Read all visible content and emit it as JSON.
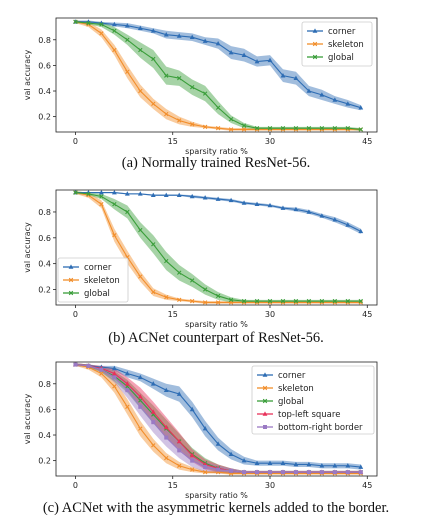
{
  "colors": {
    "corner": "#2e6db4",
    "skeleton": "#f28e2b",
    "global": "#3a9e3a",
    "top-left square": "#e8325a",
    "bottom-right border": "#9a7ac4"
  },
  "chart_data": [
    {
      "type": "line",
      "caption": "(a) Normally trained ResNet-56.",
      "xlabel": "sparsity ratio %",
      "ylabel": "val accuracy",
      "xlim": [
        -3,
        46.5
      ],
      "ylim": [
        0.08,
        0.97
      ],
      "xticks": [
        0,
        15,
        30,
        45
      ],
      "yticks": [
        0.2,
        0.4,
        0.6,
        0.8
      ],
      "legend_position": "top-right",
      "series": [
        {
          "name": "corner",
          "marker": "triangle",
          "x": [
            0,
            2,
            4,
            6,
            8,
            10,
            12,
            14,
            16,
            18,
            20,
            22,
            24,
            26,
            28,
            30,
            32,
            34,
            36,
            38,
            40,
            42,
            44
          ],
          "y": [
            0.94,
            0.94,
            0.93,
            0.92,
            0.91,
            0.89,
            0.87,
            0.84,
            0.83,
            0.82,
            0.79,
            0.77,
            0.7,
            0.68,
            0.63,
            0.64,
            0.52,
            0.5,
            0.4,
            0.37,
            0.33,
            0.3,
            0.27
          ],
          "band": [
            0.01,
            0.01,
            0.01,
            0.015,
            0.02,
            0.02,
            0.02,
            0.03,
            0.03,
            0.03,
            0.03,
            0.04,
            0.05,
            0.05,
            0.04,
            0.04,
            0.05,
            0.05,
            0.04,
            0.04,
            0.03,
            0.03,
            0.02
          ]
        },
        {
          "name": "skeleton",
          "marker": "x",
          "x": [
            0,
            2,
            4,
            6,
            8,
            10,
            12,
            14,
            16,
            18,
            20,
            22,
            24,
            26,
            28,
            30,
            32,
            34,
            36,
            38,
            40,
            42,
            44
          ],
          "y": [
            0.94,
            0.92,
            0.85,
            0.72,
            0.55,
            0.4,
            0.3,
            0.22,
            0.17,
            0.14,
            0.12,
            0.11,
            0.1,
            0.1,
            0.1,
            0.1,
            0.1,
            0.1,
            0.1,
            0.1,
            0.1,
            0.1,
            0.1
          ],
          "band": [
            0.01,
            0.02,
            0.03,
            0.04,
            0.05,
            0.05,
            0.04,
            0.04,
            0.03,
            0.02,
            0.01,
            0.01,
            0.01,
            0.01,
            0.01,
            0.01,
            0.01,
            0.01,
            0.01,
            0.01,
            0.01,
            0.01,
            0.01
          ]
        },
        {
          "name": "global",
          "marker": "x",
          "x": [
            0,
            2,
            4,
            6,
            8,
            10,
            12,
            14,
            16,
            18,
            20,
            22,
            24,
            26,
            28,
            30,
            32,
            34,
            36,
            38,
            40,
            42,
            44
          ],
          "y": [
            0.94,
            0.93,
            0.92,
            0.87,
            0.8,
            0.72,
            0.65,
            0.52,
            0.5,
            0.43,
            0.38,
            0.27,
            0.18,
            0.13,
            0.11,
            0.11,
            0.11,
            0.11,
            0.11,
            0.11,
            0.11,
            0.11,
            0.1
          ],
          "band": [
            0.01,
            0.01,
            0.02,
            0.03,
            0.04,
            0.06,
            0.07,
            0.07,
            0.06,
            0.06,
            0.06,
            0.05,
            0.03,
            0.02,
            0.01,
            0.01,
            0.01,
            0.01,
            0.01,
            0.01,
            0.01,
            0.01,
            0.01
          ]
        }
      ]
    },
    {
      "type": "line",
      "caption": "(b) ACNet counterpart of ResNet-56.",
      "xlabel": "sparsity ratio %",
      "ylabel": "val accuracy",
      "xlim": [
        -3,
        46.5
      ],
      "ylim": [
        0.08,
        0.97
      ],
      "xticks": [
        0,
        15,
        30,
        45
      ],
      "yticks": [
        0.2,
        0.4,
        0.6,
        0.8
      ],
      "legend_position": "center-left",
      "series": [
        {
          "name": "corner",
          "marker": "triangle",
          "x": [
            0,
            2,
            4,
            6,
            8,
            10,
            12,
            14,
            16,
            18,
            20,
            22,
            24,
            26,
            28,
            30,
            32,
            34,
            36,
            38,
            40,
            42,
            44
          ],
          "y": [
            0.95,
            0.95,
            0.95,
            0.95,
            0.94,
            0.94,
            0.93,
            0.93,
            0.93,
            0.92,
            0.91,
            0.9,
            0.89,
            0.87,
            0.86,
            0.85,
            0.83,
            0.82,
            0.8,
            0.77,
            0.74,
            0.7,
            0.65
          ],
          "band": [
            0.005,
            0.005,
            0.005,
            0.005,
            0.005,
            0.005,
            0.005,
            0.005,
            0.005,
            0.01,
            0.01,
            0.01,
            0.01,
            0.01,
            0.01,
            0.01,
            0.01,
            0.015,
            0.015,
            0.015,
            0.02,
            0.02,
            0.02
          ]
        },
        {
          "name": "skeleton",
          "marker": "x",
          "x": [
            0,
            2,
            4,
            6,
            8,
            10,
            12,
            14,
            16,
            18,
            20,
            22,
            24,
            26,
            28,
            30,
            32,
            34,
            36,
            38,
            40,
            42,
            44
          ],
          "y": [
            0.95,
            0.93,
            0.86,
            0.62,
            0.45,
            0.3,
            0.18,
            0.14,
            0.12,
            0.11,
            0.1,
            0.1,
            0.1,
            0.1,
            0.1,
            0.1,
            0.1,
            0.1,
            0.1,
            0.1,
            0.1,
            0.1,
            0.1
          ],
          "band": [
            0.01,
            0.02,
            0.03,
            0.05,
            0.05,
            0.04,
            0.03,
            0.02,
            0.01,
            0.01,
            0.01,
            0.01,
            0.01,
            0.01,
            0.01,
            0.01,
            0.01,
            0.01,
            0.01,
            0.01,
            0.01,
            0.01,
            0.01
          ]
        },
        {
          "name": "global",
          "marker": "x",
          "x": [
            0,
            2,
            4,
            6,
            8,
            10,
            12,
            14,
            16,
            18,
            20,
            22,
            24,
            26,
            28,
            30,
            32,
            34,
            36,
            38,
            40,
            42,
            44
          ],
          "y": [
            0.95,
            0.94,
            0.92,
            0.86,
            0.8,
            0.66,
            0.55,
            0.42,
            0.33,
            0.27,
            0.2,
            0.15,
            0.12,
            0.11,
            0.11,
            0.11,
            0.11,
            0.11,
            0.11,
            0.11,
            0.11,
            0.11,
            0.11
          ],
          "band": [
            0.01,
            0.01,
            0.02,
            0.04,
            0.05,
            0.06,
            0.07,
            0.07,
            0.06,
            0.05,
            0.04,
            0.03,
            0.02,
            0.01,
            0.01,
            0.01,
            0.01,
            0.01,
            0.01,
            0.01,
            0.01,
            0.01,
            0.01
          ]
        }
      ]
    },
    {
      "type": "line",
      "caption": "(c) ACNet with the asymmetric kernels added to the border.",
      "xlabel": "sparsity ratio %",
      "ylabel": "val accuracy",
      "xlim": [
        -3,
        46.5
      ],
      "ylim": [
        0.08,
        0.97
      ],
      "xticks": [
        0,
        15,
        30,
        45
      ],
      "yticks": [
        0.2,
        0.4,
        0.6,
        0.8
      ],
      "legend_position": "top-right",
      "series": [
        {
          "name": "corner",
          "marker": "triangle",
          "x": [
            0,
            2,
            4,
            6,
            8,
            10,
            12,
            14,
            16,
            18,
            20,
            22,
            24,
            26,
            28,
            30,
            32,
            34,
            36,
            38,
            40,
            42,
            44
          ],
          "y": [
            0.95,
            0.94,
            0.93,
            0.92,
            0.88,
            0.85,
            0.8,
            0.75,
            0.72,
            0.6,
            0.45,
            0.33,
            0.25,
            0.2,
            0.18,
            0.18,
            0.18,
            0.17,
            0.17,
            0.16,
            0.16,
            0.16,
            0.15
          ],
          "band": [
            0.01,
            0.01,
            0.01,
            0.02,
            0.03,
            0.03,
            0.04,
            0.05,
            0.06,
            0.06,
            0.06,
            0.05,
            0.04,
            0.03,
            0.02,
            0.02,
            0.02,
            0.02,
            0.02,
            0.02,
            0.02,
            0.02,
            0.02
          ]
        },
        {
          "name": "skeleton",
          "marker": "x",
          "x": [
            0,
            2,
            4,
            6,
            8,
            10,
            12,
            14,
            16,
            18,
            20,
            22,
            24,
            26,
            28,
            30,
            32,
            34,
            36,
            38,
            40,
            42,
            44
          ],
          "y": [
            0.95,
            0.93,
            0.88,
            0.78,
            0.62,
            0.45,
            0.32,
            0.22,
            0.16,
            0.13,
            0.11,
            0.11,
            0.1,
            0.1,
            0.1,
            0.1,
            0.1,
            0.1,
            0.1,
            0.1,
            0.1,
            0.1,
            0.1
          ],
          "band": [
            0.01,
            0.02,
            0.03,
            0.05,
            0.06,
            0.06,
            0.05,
            0.04,
            0.03,
            0.02,
            0.01,
            0.01,
            0.01,
            0.01,
            0.01,
            0.01,
            0.01,
            0.01,
            0.01,
            0.01,
            0.01,
            0.01,
            0.01
          ]
        },
        {
          "name": "global",
          "marker": "x",
          "x": [
            0,
            2,
            4,
            6,
            8,
            10,
            12,
            14,
            16,
            18,
            20,
            22,
            24,
            26,
            28,
            30,
            32,
            34,
            36,
            38,
            40,
            42,
            44
          ],
          "y": [
            0.95,
            0.94,
            0.91,
            0.86,
            0.78,
            0.67,
            0.56,
            0.45,
            0.35,
            0.25,
            0.18,
            0.14,
            0.12,
            0.11,
            0.11,
            0.11,
            0.11,
            0.11,
            0.11,
            0.11,
            0.11,
            0.11,
            0.11
          ],
          "band": [
            0.01,
            0.01,
            0.02,
            0.04,
            0.05,
            0.06,
            0.07,
            0.07,
            0.06,
            0.05,
            0.04,
            0.03,
            0.02,
            0.01,
            0.01,
            0.01,
            0.01,
            0.01,
            0.01,
            0.01,
            0.01,
            0.01,
            0.01
          ]
        },
        {
          "name": "top-left square",
          "marker": "triangle",
          "x": [
            0,
            2,
            4,
            6,
            8,
            10,
            12,
            14,
            16,
            18,
            20,
            22,
            24,
            26,
            28,
            30,
            32,
            34,
            36,
            38,
            40,
            42,
            44
          ],
          "y": [
            0.95,
            0.94,
            0.92,
            0.88,
            0.8,
            0.7,
            0.58,
            0.46,
            0.35,
            0.24,
            0.17,
            0.14,
            0.12,
            0.11,
            0.11,
            0.11,
            0.11,
            0.11,
            0.11,
            0.11,
            0.11,
            0.11,
            0.11
          ],
          "band": [
            0.01,
            0.01,
            0.02,
            0.04,
            0.05,
            0.07,
            0.08,
            0.08,
            0.07,
            0.05,
            0.04,
            0.03,
            0.02,
            0.01,
            0.01,
            0.01,
            0.01,
            0.01,
            0.01,
            0.01,
            0.01,
            0.01,
            0.01
          ]
        },
        {
          "name": "bottom-right border",
          "marker": "square",
          "x": [
            0,
            2,
            4,
            6,
            8,
            10,
            12,
            14,
            16,
            18,
            20,
            22,
            24,
            26,
            28,
            30,
            32,
            34,
            36,
            38,
            40,
            42,
            44
          ],
          "y": [
            0.95,
            0.94,
            0.91,
            0.85,
            0.75,
            0.62,
            0.5,
            0.38,
            0.28,
            0.2,
            0.15,
            0.13,
            0.12,
            0.11,
            0.11,
            0.11,
            0.11,
            0.11,
            0.11,
            0.11,
            0.11,
            0.11,
            0.11
          ],
          "band": [
            0.01,
            0.01,
            0.02,
            0.04,
            0.06,
            0.07,
            0.08,
            0.07,
            0.06,
            0.05,
            0.04,
            0.03,
            0.02,
            0.01,
            0.01,
            0.01,
            0.01,
            0.01,
            0.01,
            0.01,
            0.01,
            0.01,
            0.01
          ]
        }
      ]
    }
  ]
}
